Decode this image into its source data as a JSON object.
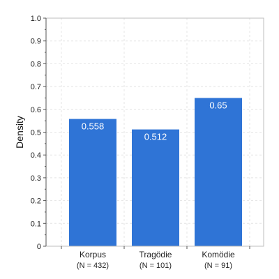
{
  "chart_data": {
    "type": "bar",
    "title": "",
    "xlabel": "",
    "ylabel": "Density",
    "ylim": [
      0,
      1.0
    ],
    "yticks": [
      "0",
      "0.1",
      "0.2",
      "0.3",
      "0.4",
      "0.5",
      "0.6",
      "0.7",
      "0.8",
      "0.9",
      "1.0"
    ],
    "categories": [
      "Korpus",
      "Tragödie",
      "Komödie"
    ],
    "category_sublabels": [
      "(N = 432)",
      "(N = 101)",
      "(N = 91)"
    ],
    "values": [
      0.558,
      0.512,
      0.65
    ],
    "value_labels": [
      "0.558",
      "0.512",
      "0.65"
    ],
    "bar_color": "#2f74d6",
    "grid": true,
    "legend": "none"
  }
}
